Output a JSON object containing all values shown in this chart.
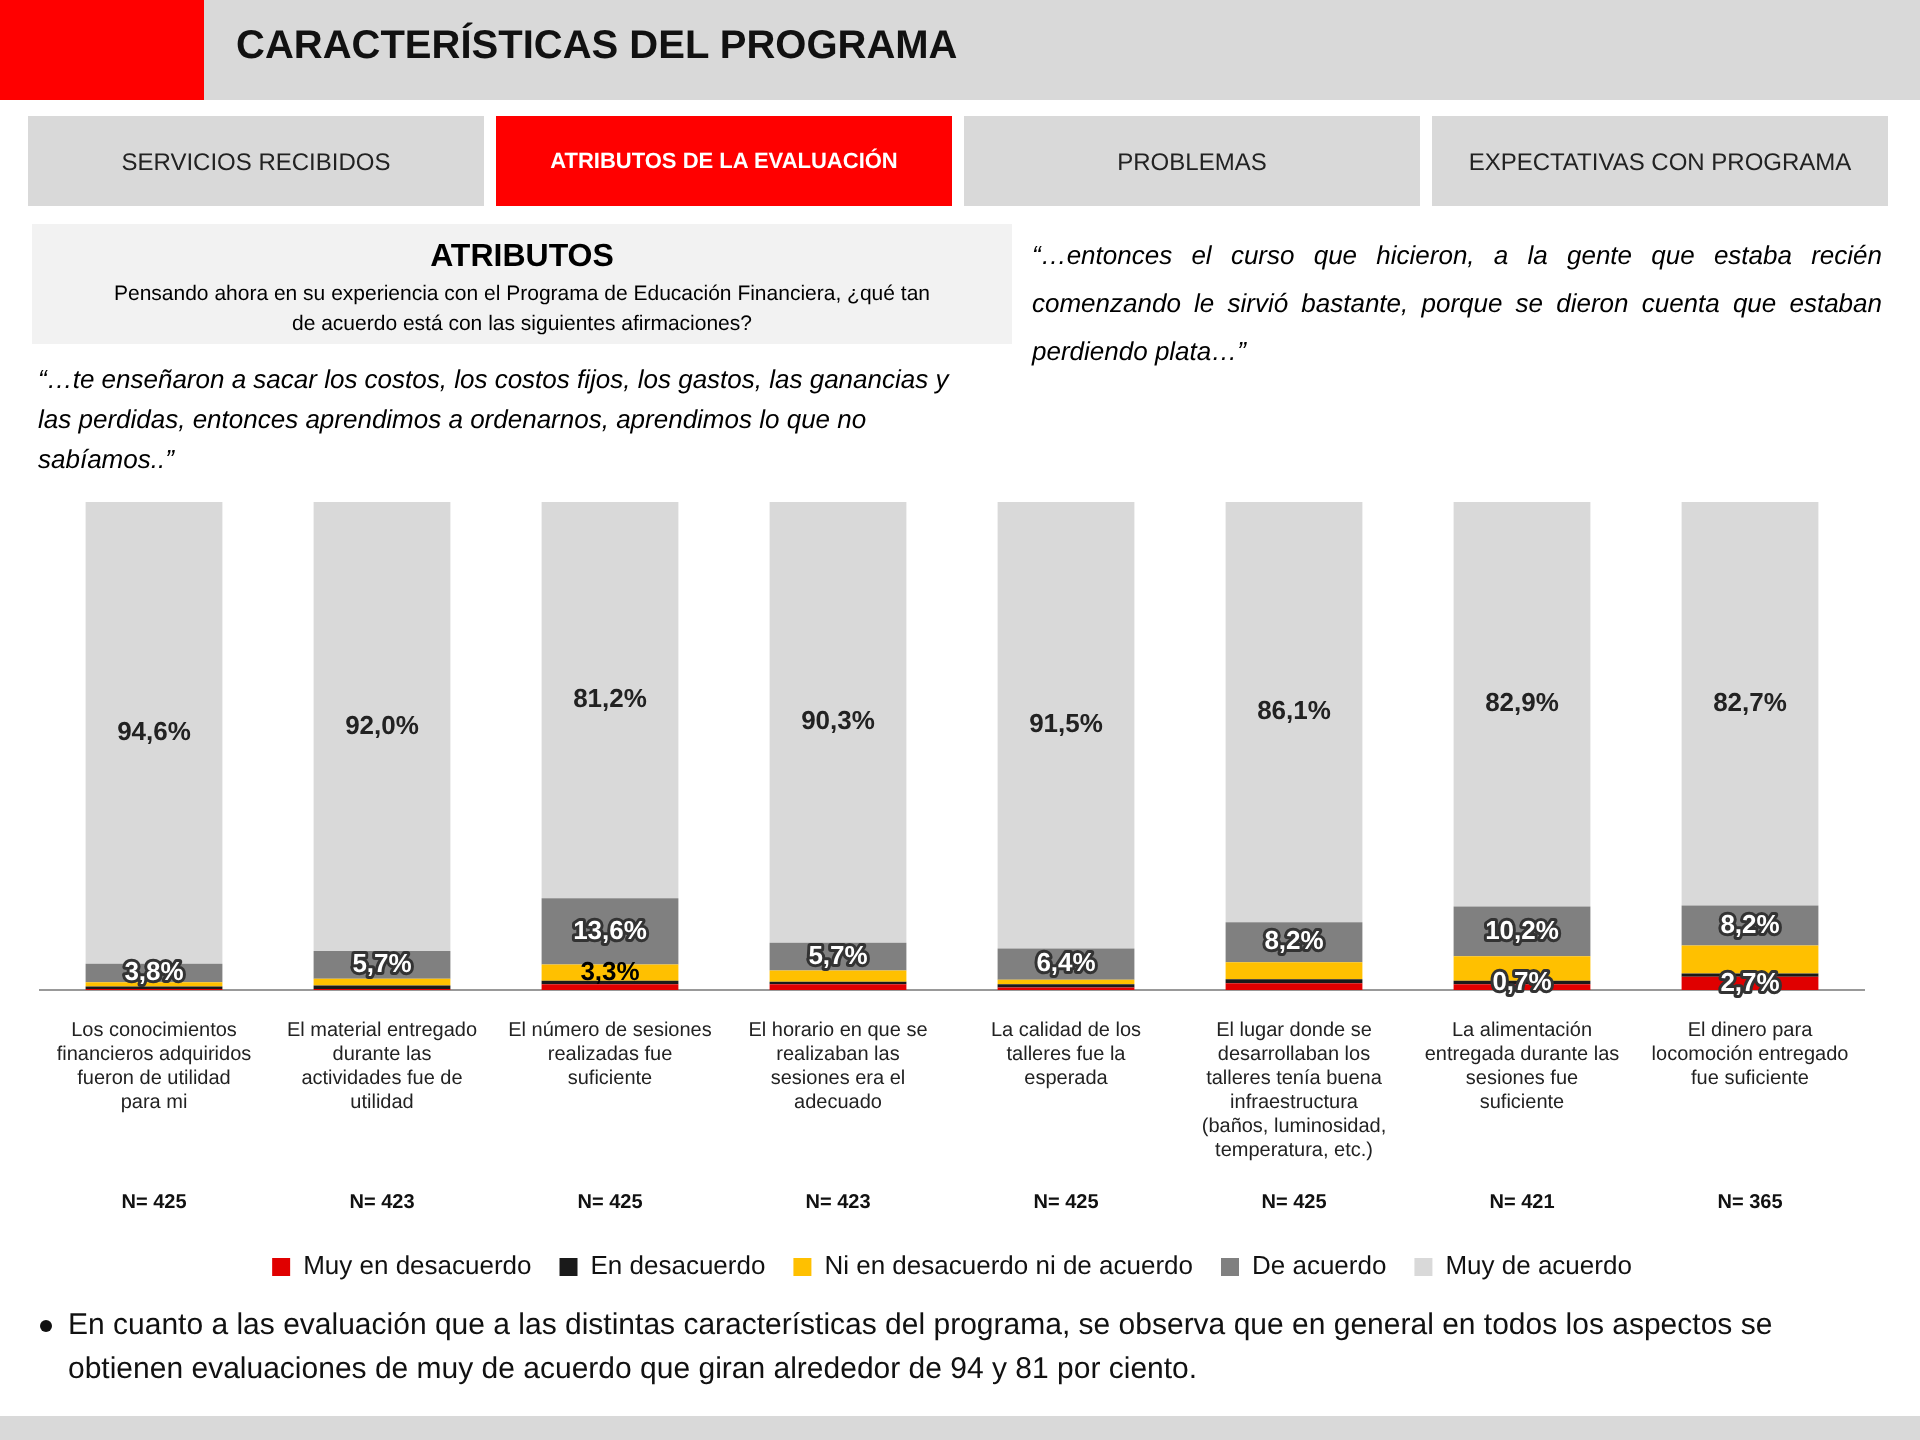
{
  "chart_data": {
    "type": "bar",
    "stacked": true,
    "title": "CARACTERÍSTICAS DEL PROGRAMA",
    "subtitle": "ATRIBUTOS",
    "categories": [
      "Los conocimientos financieros adquiridos fueron de utilidad para mi",
      "El material entregado durante las actividades fue de utilidad",
      "El número de sesiones realizadas fue suficiente",
      "El horario en que se realizaban las sesiones era el adecuado",
      "La calidad de los talleres fue la esperada",
      "El lugar donde se desarrollaban los talleres tenía buena infraestructura (baños, luminosidad, temperatura, etc.)",
      "La alimentación entregada durante las sesiones fue suficiente",
      "El dinero para locomoción entregado fue suficiente"
    ],
    "series": [
      {
        "name": "Muy en desacuerdo",
        "color": "#e00000",
        "values": [
          0.2,
          0.2,
          1.2,
          1.2,
          0.5,
          1.4,
          1.2,
          2.7
        ],
        "value_labels": [
          null,
          null,
          null,
          null,
          null,
          null,
          null,
          "2,7%"
        ]
      },
      {
        "name": "En desacuerdo",
        "color": "#1a1a1a",
        "values": [
          0.5,
          0.7,
          0.7,
          0.5,
          0.7,
          0.8,
          0.7,
          0.7
        ],
        "value_labels": [
          null,
          null,
          null,
          null,
          null,
          null,
          "0,7%",
          null
        ]
      },
      {
        "name": "Ni en desacuerdo ni de acuerdo",
        "color": "#ffc000",
        "values": [
          0.9,
          1.4,
          3.3,
          2.3,
          0.9,
          3.5,
          5.0,
          5.7
        ],
        "value_labels": [
          null,
          null,
          "3,3%",
          null,
          null,
          null,
          null,
          null
        ]
      },
      {
        "name": "De acuerdo",
        "color": "#808080",
        "values": [
          3.8,
          5.7,
          13.6,
          5.7,
          6.4,
          8.2,
          10.2,
          8.2
        ],
        "value_labels": [
          "3,8%",
          "5,7%",
          "13,6%",
          "5,7%",
          "6,4%",
          "8,2%",
          "10,2%",
          "8,2%"
        ]
      },
      {
        "name": "Muy de acuerdo",
        "color": "#d9d9d9",
        "values": [
          94.6,
          92.0,
          81.2,
          90.3,
          91.5,
          86.1,
          82.9,
          82.7
        ],
        "value_labels": [
          "94,6%",
          "92,0%",
          "81,2%",
          "90,3%",
          "91,5%",
          "86,1%",
          "82,9%",
          "82,7%"
        ]
      }
    ],
    "ylim": [
      0,
      100
    ],
    "tick_labels": "x",
    "grid": false,
    "legend": "bottom",
    "annotations": [
      "SERVICIOS RECIBIDOS",
      "ATRIBUTOS DE LA EVALUACIÓN",
      "PROBLEMAS",
      "EXPECTATIVAS CON PROGRAMA",
      "Pensando ahora en su experiencia con el Programa de Educación Financiera, ¿qué tan de acuerdo está con las siguientes afirmaciones?",
      "“…te enseñaron a sacar los costos, los costos fijos, los gastos, las ganancias y las perdidas, entonces aprendimos a ordenarnos, aprendimos lo que no sabíamos..”",
      "“…entonces el curso que hicieron, a la gente que estaba recién comenzando le sirvió bastante, porque se dieron cuenta que estaban perdiendo plata…”",
      "N= 425",
      "N= 423",
      "N= 425",
      "N= 423",
      "N= 425",
      "N= 425",
      "N= 421",
      "N= 365",
      "En cuanto a las evaluación que a las distintas características del programa, se observa que en general en todos los aspectos se obtienen evaluaciones de muy de acuerdo que giran alrededor de 94 y 81 por ciento."
    ]
  }
}
